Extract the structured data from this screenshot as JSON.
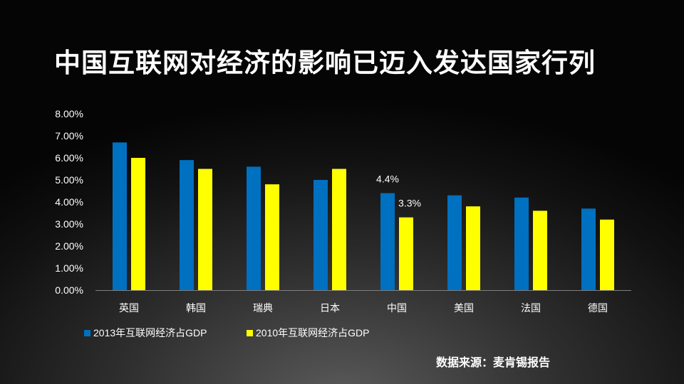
{
  "title": "中国互联网对经济的影响已迈入发达国家行列",
  "source": "数据来源：麦肯锡报告",
  "chart_data": {
    "type": "bar",
    "title": "中国互联网对经济的影响已迈入发达国家行列",
    "categories": [
      "英国",
      "韩国",
      "瑞典",
      "日本",
      "中国",
      "美国",
      "法国",
      "德国"
    ],
    "series": [
      {
        "name": "2013年互联网经济占GDP",
        "color": "#0070c0",
        "values": [
          6.7,
          5.9,
          5.6,
          5.0,
          4.4,
          4.3,
          4.2,
          3.7
        ]
      },
      {
        "name": "2010年互联网经济占GDP",
        "color": "#ffff00",
        "values": [
          6.0,
          5.5,
          4.8,
          5.5,
          3.3,
          3.8,
          3.6,
          3.2
        ]
      }
    ],
    "data_labels": [
      {
        "series": 0,
        "category": "中国",
        "text": "4.4%"
      },
      {
        "series": 1,
        "category": "中国",
        "text": "3.3%"
      }
    ],
    "yticks": [
      "0.00%",
      "1.00%",
      "2.00%",
      "3.00%",
      "4.00%",
      "5.00%",
      "6.00%",
      "7.00%",
      "8.00%"
    ],
    "ylim": [
      0,
      8
    ],
    "ylabel": "",
    "xlabel": "",
    "legend_position": "bottom-left",
    "grid": false
  }
}
